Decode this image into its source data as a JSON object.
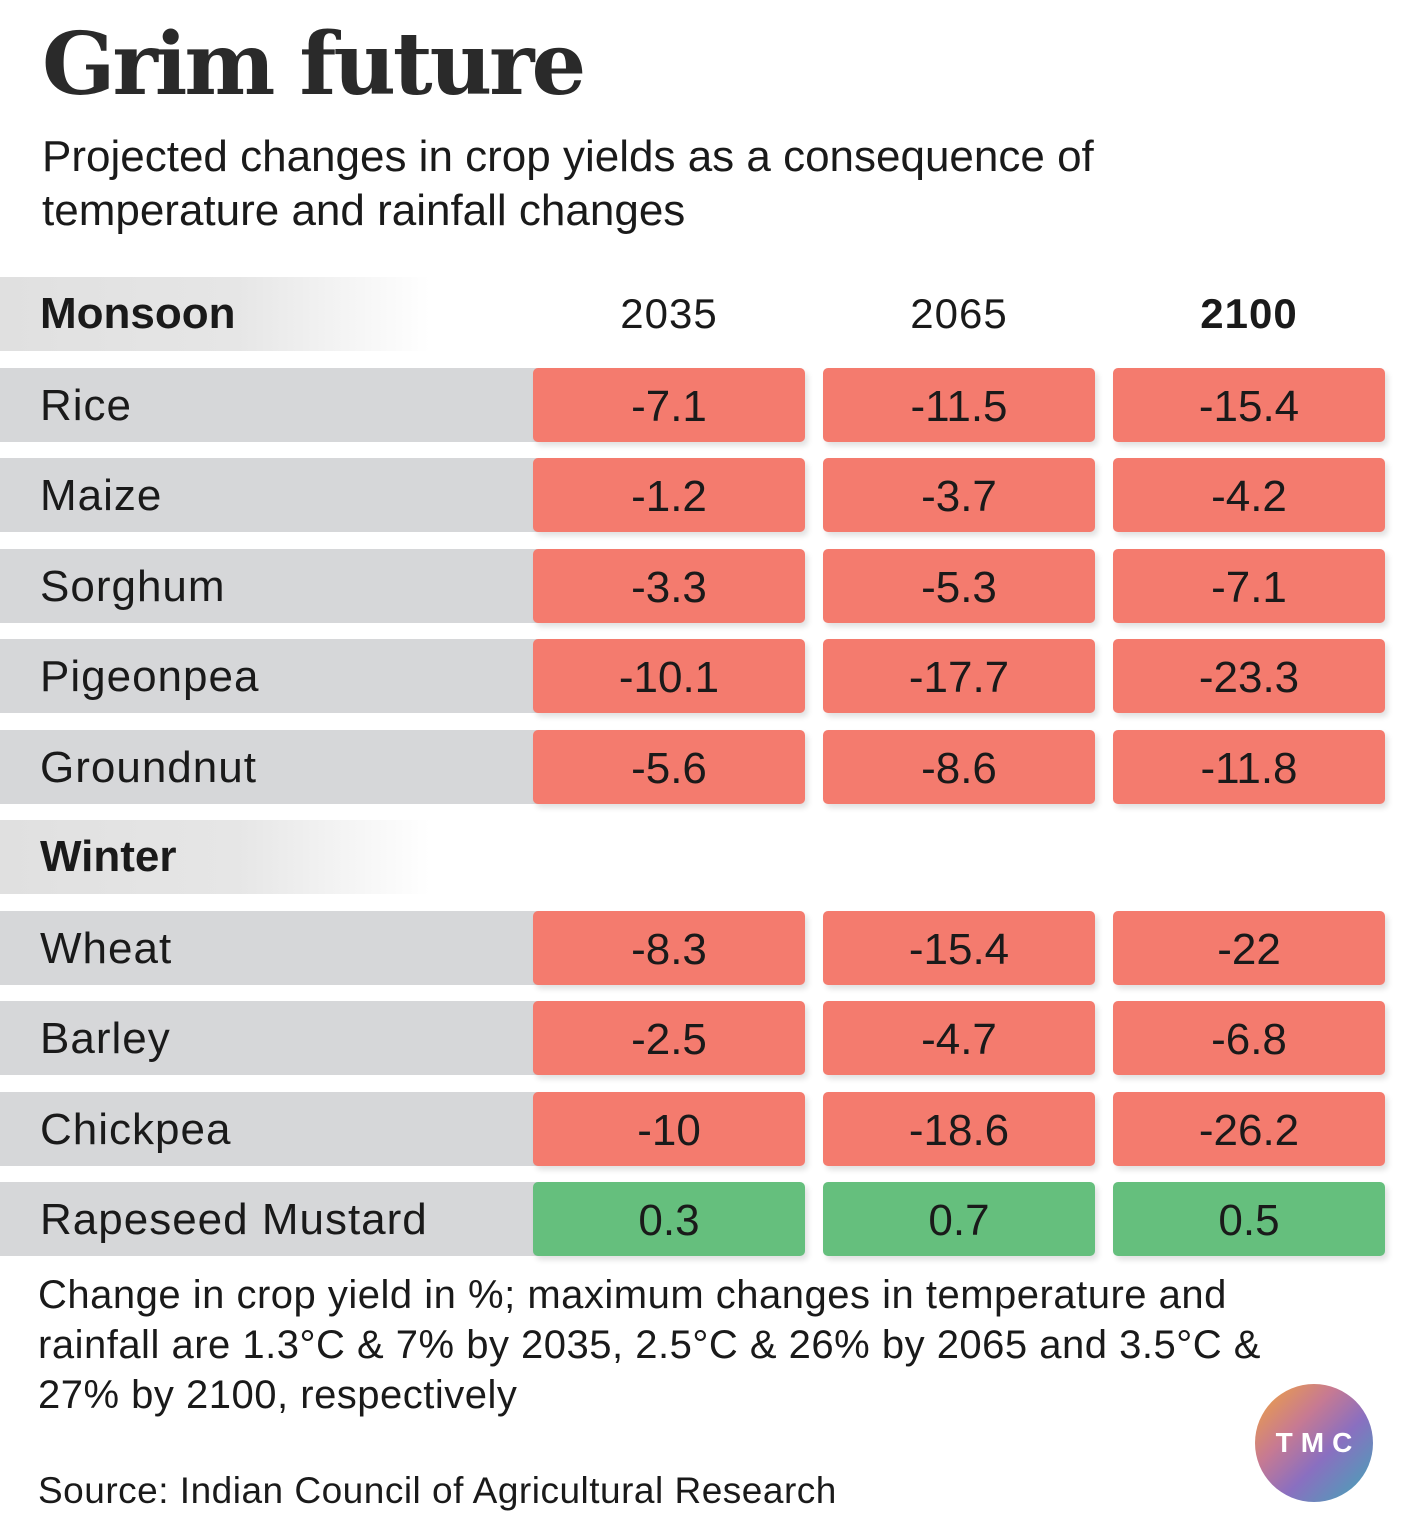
{
  "header": {
    "title": "Grim future",
    "subtitle": "Projected changes in crop yields as a consequence of temperature and rainfall changes"
  },
  "chart_data": {
    "type": "table",
    "title": "Grim future",
    "subtitle": "Projected changes in crop yields as a consequence of temperature and rainfall changes",
    "columns": [
      "2035",
      "2065",
      "2100"
    ],
    "sections": [
      {
        "name": "Monsoon",
        "rows": [
          {
            "crop": "Rice",
            "values": [
              -7.1,
              -11.5,
              -15.4
            ],
            "display": [
              "-7.1",
              "-11.5",
              "-15.4"
            ]
          },
          {
            "crop": "Maize",
            "values": [
              -1.2,
              -3.7,
              -4.2
            ],
            "display": [
              "-1.2",
              "-3.7",
              "-4.2"
            ]
          },
          {
            "crop": "Sorghum",
            "values": [
              -3.3,
              -5.3,
              -7.1
            ],
            "display": [
              "-3.3",
              "-5.3",
              "-7.1"
            ]
          },
          {
            "crop": "Pigeonpea",
            "values": [
              -10.1,
              -17.7,
              -23.3
            ],
            "display": [
              "-10.1",
              "-17.7",
              "-23.3"
            ]
          },
          {
            "crop": "Groundnut",
            "values": [
              -5.6,
              -8.6,
              -11.8
            ],
            "display": [
              "-5.6",
              "-8.6",
              "-11.8"
            ]
          }
        ]
      },
      {
        "name": "Winter",
        "rows": [
          {
            "crop": "Wheat",
            "values": [
              -8.3,
              -15.4,
              -22
            ],
            "display": [
              "-8.3",
              "-15.4",
              "-22"
            ]
          },
          {
            "crop": "Barley",
            "values": [
              -2.5,
              -4.7,
              -6.8
            ],
            "display": [
              "-2.5",
              "-4.7",
              "-6.8"
            ]
          },
          {
            "crop": "Chickpea",
            "values": [
              -10,
              -18.6,
              -26.2
            ],
            "display": [
              "-10",
              "-18.6",
              "-26.2"
            ]
          },
          {
            "crop": "Rapeseed Mustard",
            "values": [
              0.3,
              0.7,
              0.5
            ],
            "display": [
              "0.3",
              "0.7",
              "0.5"
            ]
          }
        ]
      }
    ],
    "colors": {
      "negative": "#f47b6e",
      "positive": "#65bf7d",
      "label_bg": "#d6d7d9"
    }
  },
  "footer": {
    "note": "Change in crop yield in %; maximum changes in temperature and rainfall are 1.3°C & 7% by 2035, 2.5°C & 26% by 2065 and 3.5°C & 27% by 2100, respectively",
    "source": "Source: Indian Council of Agricultural Research",
    "logo_text": "TMC"
  }
}
